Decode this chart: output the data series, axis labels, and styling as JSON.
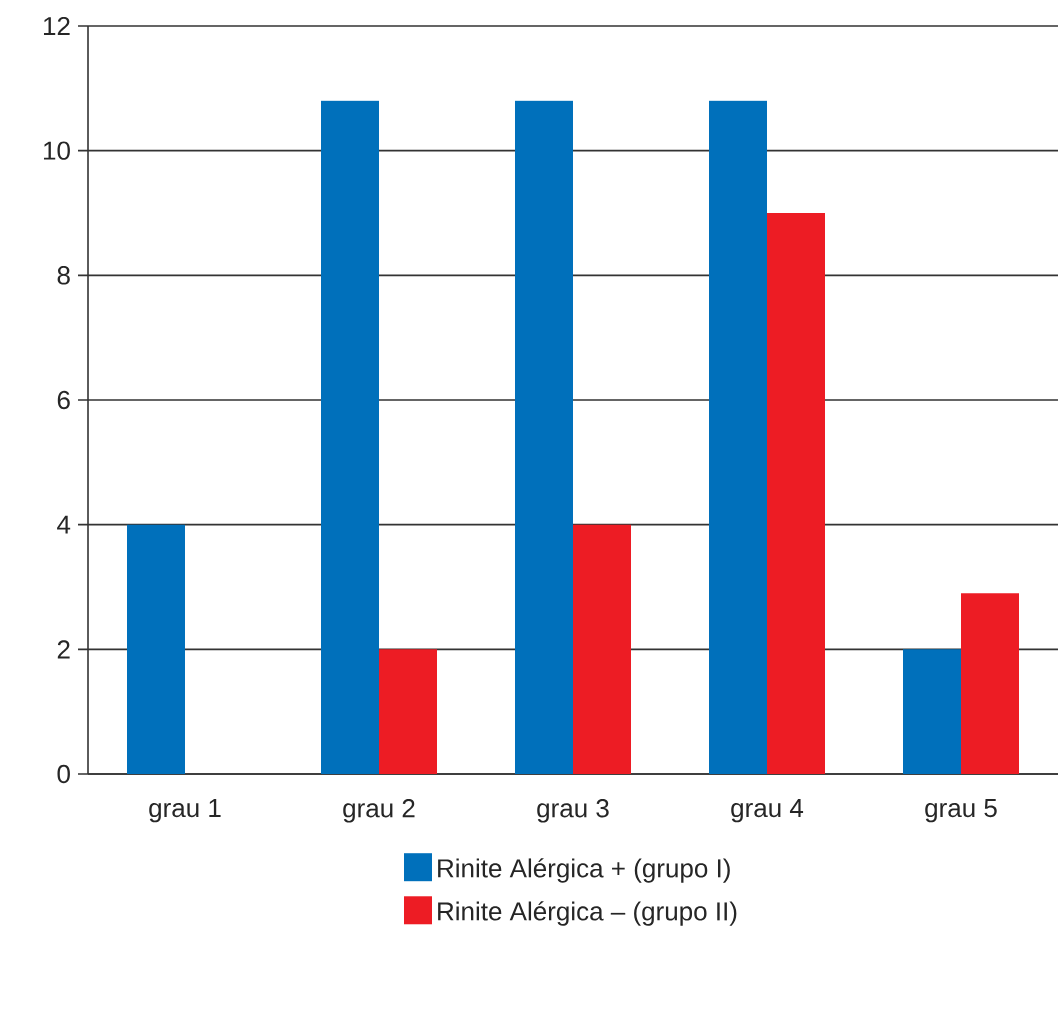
{
  "chart_data": {
    "type": "bar",
    "categories": [
      "grau 1",
      "grau 2",
      "grau 3",
      "grau 4",
      "grau 5"
    ],
    "series": [
      {
        "name": "Rinite Alérgica + (grupo I)",
        "color": "#0070bb",
        "values": [
          4,
          10.8,
          10.8,
          10.8,
          2
        ]
      },
      {
        "name": "Rinite Alérgica – (grupo II)",
        "color": "#ed1c24",
        "values": [
          0,
          2,
          4,
          9,
          2.9
        ]
      }
    ],
    "ylim": [
      0,
      12
    ],
    "yticks": [
      0,
      2,
      4,
      6,
      8,
      10,
      12
    ],
    "grid": "y",
    "legend": "bottom"
  }
}
